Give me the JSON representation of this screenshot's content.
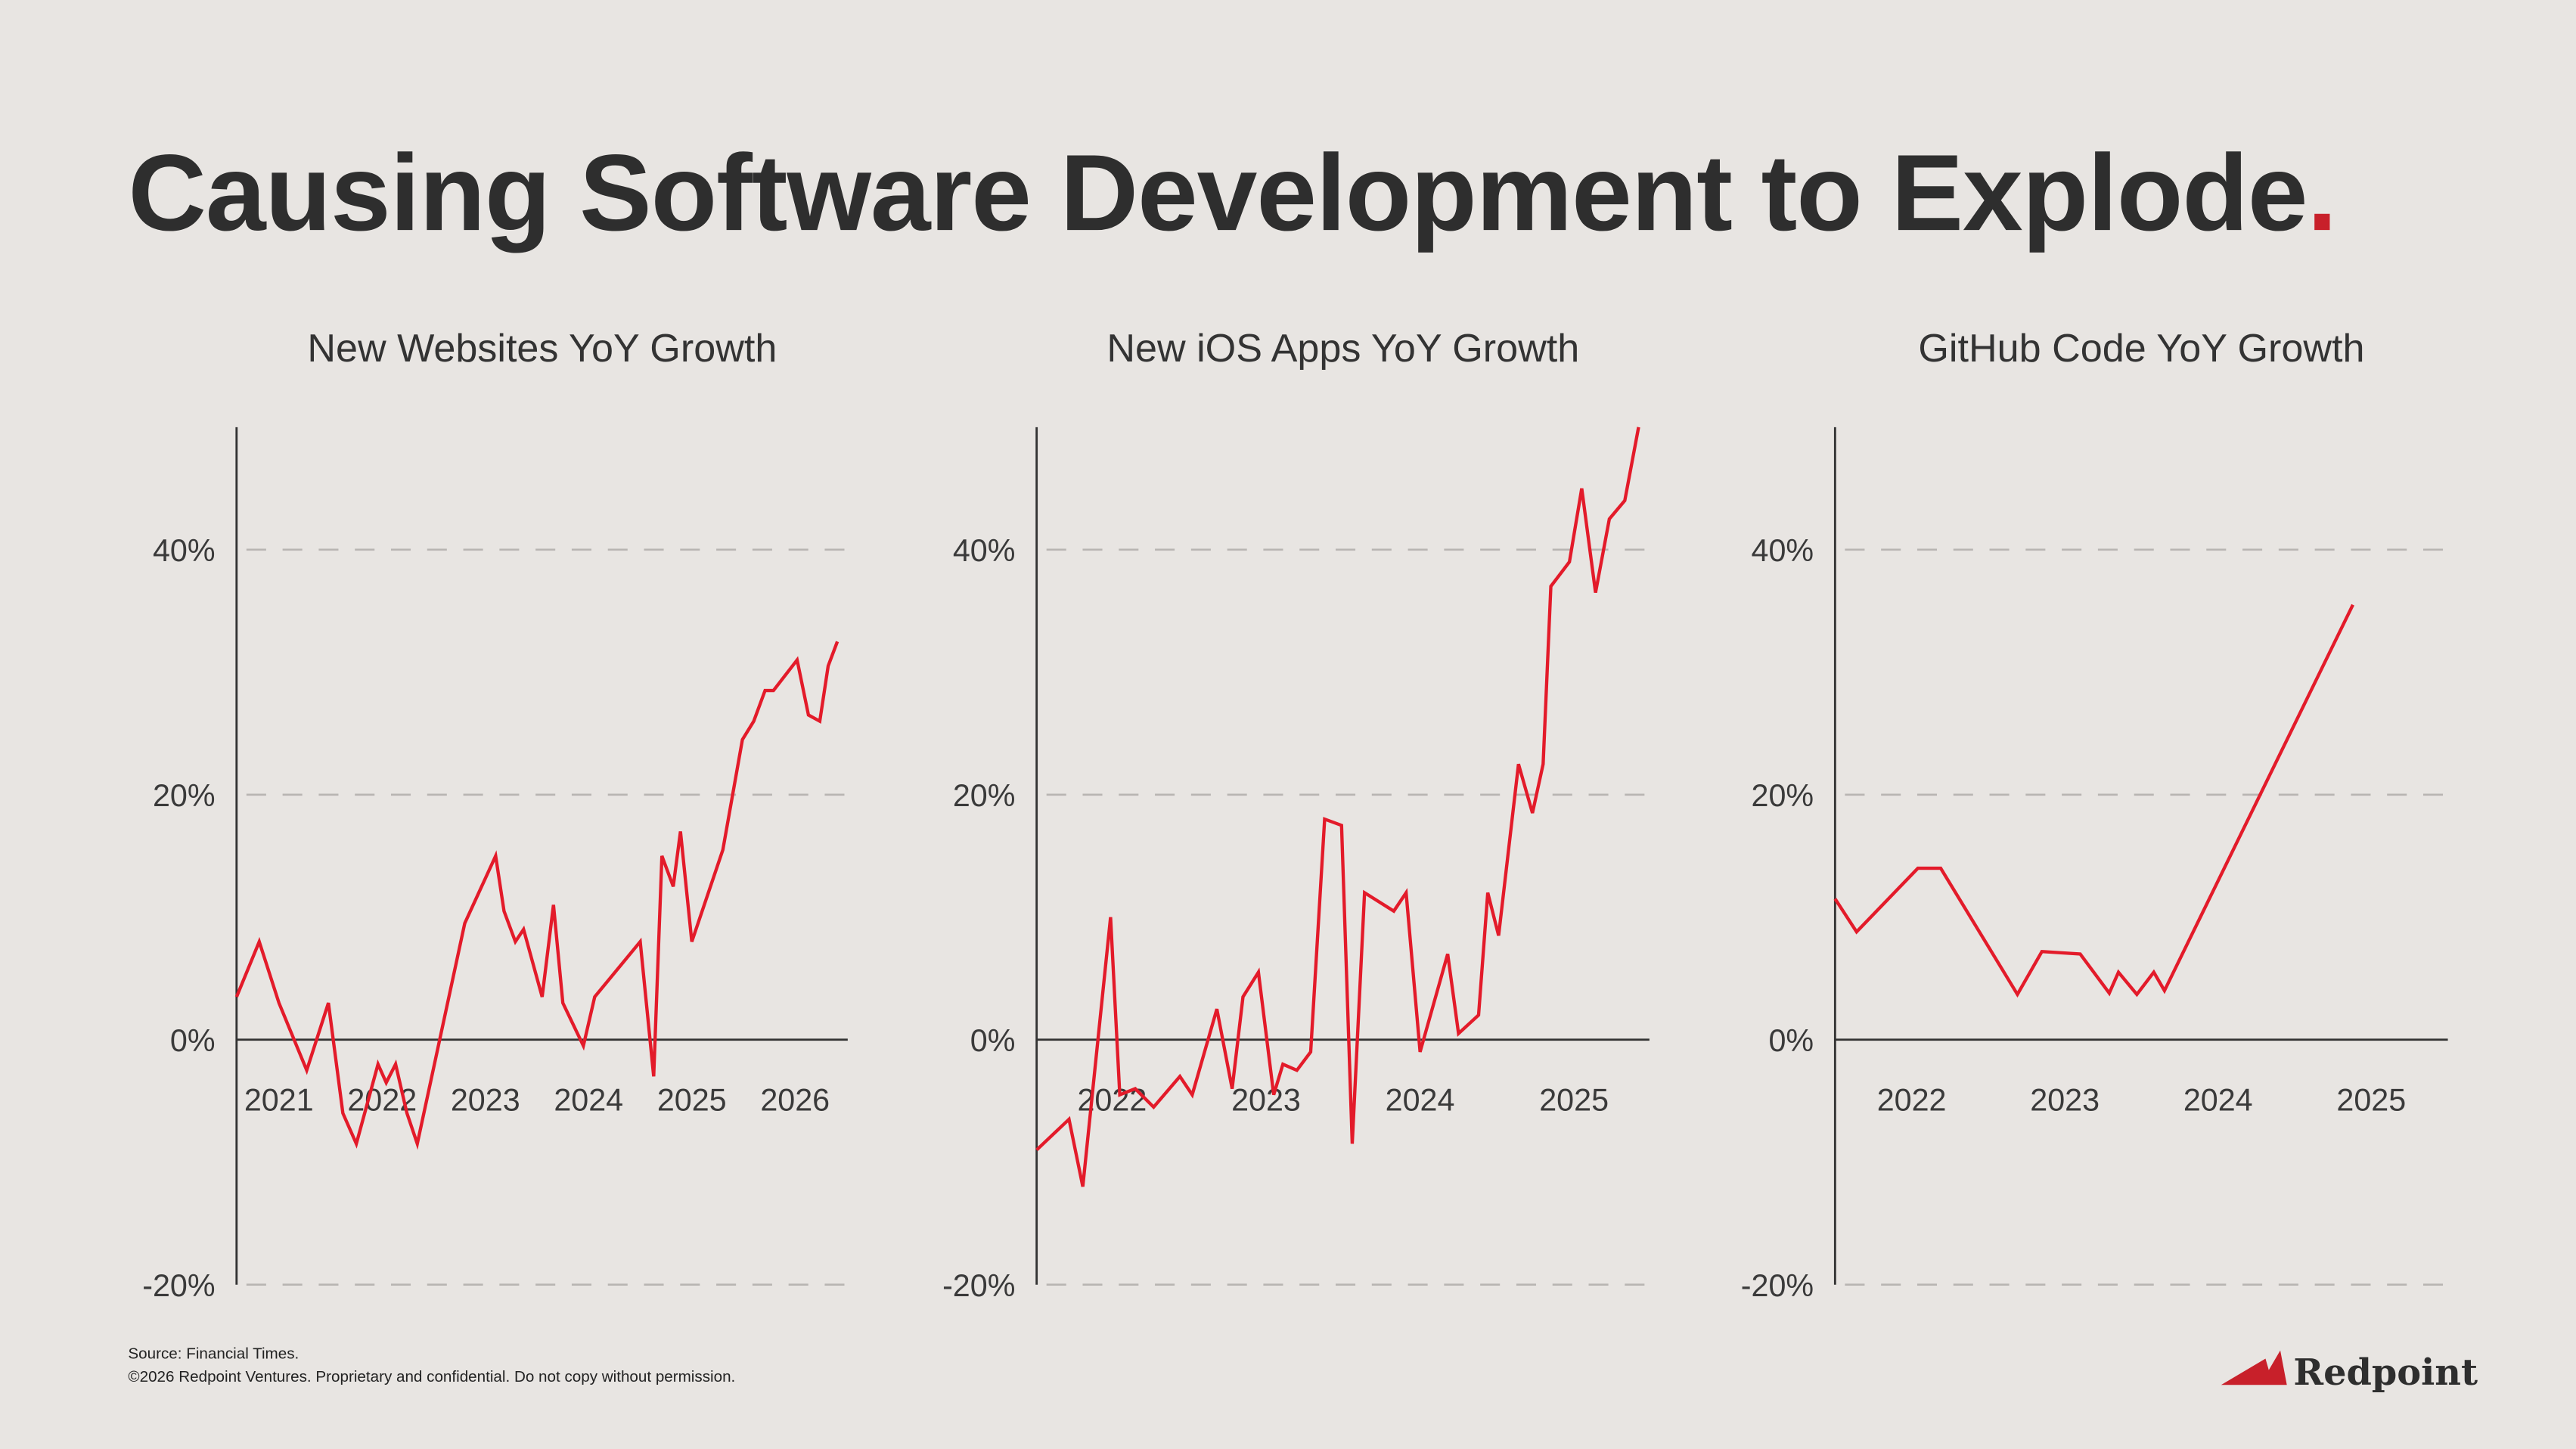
{
  "title": {
    "text": "Causing Software Development to Explode",
    "period": "."
  },
  "colors": {
    "line": "#e31b2a",
    "accent": "#c8202a",
    "text": "#2e2e2e",
    "grid": "#b8b5b2",
    "background": "#e8e5e2"
  },
  "chart_data": [
    {
      "type": "line",
      "title": "New Websites YoY Growth",
      "xlabel": "",
      "ylabel": "",
      "xlim": [
        2020.59,
        2026.51
      ],
      "ylim": [
        -20,
        50
      ],
      "grid": "dashed horizontal at 20% and 40%",
      "yticks": [
        {
          "v": 40,
          "label": "40%"
        },
        {
          "v": 20,
          "label": "20%"
        },
        {
          "v": 0,
          "label": "0%"
        },
        {
          "v": -20,
          "label": "-20%"
        }
      ],
      "xticks": [
        {
          "v": 2021,
          "label": "2021"
        },
        {
          "v": 2022,
          "label": "2022"
        },
        {
          "v": 2023,
          "label": "2023"
        },
        {
          "v": 2024,
          "label": "2024"
        },
        {
          "v": 2025,
          "label": "2025"
        },
        {
          "v": 2026,
          "label": "2026"
        }
      ],
      "series": [
        {
          "name": "New Websites YoY Growth",
          "x": [
            2020.59,
            2020.81,
            2021.0,
            2021.27,
            2021.48,
            2021.62,
            2021.75,
            2021.96,
            2022.04,
            2022.13,
            2022.24,
            2022.34,
            2022.8,
            2023.1,
            2023.18,
            2023.29,
            2023.37,
            2023.55,
            2023.66,
            2023.75,
            2023.95,
            2024.06,
            2024.5,
            2024.63,
            2024.71,
            2024.82,
            2024.89,
            2025.0,
            2025.3,
            2025.49,
            2025.6,
            2025.71,
            2025.79,
            2026.02,
            2026.13,
            2026.24,
            2026.32,
            2026.41
          ],
          "y": [
            3.5,
            8,
            3,
            -2.5,
            3,
            -6,
            -8.5,
            -2,
            -3.5,
            -2,
            -6,
            -8.5,
            9.5,
            15,
            10.5,
            8,
            9,
            3.5,
            11,
            3,
            -0.5,
            3.5,
            8,
            -3,
            15,
            12.5,
            17,
            8,
            15.5,
            24.5,
            26,
            28.5,
            28.5,
            31,
            26.5,
            26,
            30.5,
            32.5
          ]
        }
      ]
    },
    {
      "type": "line",
      "title": "New iOS Apps YoY Growth",
      "xlabel": "",
      "ylabel": "",
      "xlim": [
        2021.51,
        2025.49
      ],
      "ylim": [
        -20,
        50
      ],
      "grid": "dashed horizontal at 20% and 40%",
      "yticks": [
        {
          "v": 40,
          "label": "40%"
        },
        {
          "v": 20,
          "label": "20%"
        },
        {
          "v": 0,
          "label": "0%"
        },
        {
          "v": -20,
          "label": "-20%"
        }
      ],
      "xticks": [
        {
          "v": 2022,
          "label": "2022"
        },
        {
          "v": 2023,
          "label": "2023"
        },
        {
          "v": 2024,
          "label": "2024"
        },
        {
          "v": 2025,
          "label": "2025"
        }
      ],
      "series": [
        {
          "name": "New iOS Apps YoY Growth",
          "x": [
            2021.51,
            2021.72,
            2021.81,
            2021.99,
            2022.05,
            2022.15,
            2022.27,
            2022.44,
            2022.52,
            2022.68,
            2022.78,
            2022.85,
            2022.95,
            2023.05,
            2023.11,
            2023.2,
            2023.29,
            2023.38,
            2023.49,
            2023.56,
            2023.64,
            2023.83,
            2023.91,
            2024.0,
            2024.18,
            2024.25,
            2024.38,
            2024.44,
            2024.51,
            2024.64,
            2024.73,
            2024.8,
            2024.85,
            2024.97,
            2025.05,
            2025.14,
            2025.23,
            2025.33,
            2025.42
          ],
          "y": [
            -9,
            -6.5,
            -12,
            10,
            -4.5,
            -4,
            -5.5,
            -3,
            -4.5,
            2.5,
            -4,
            3.5,
            5.5,
            -4.5,
            -2,
            -2.5,
            -1,
            18,
            17.5,
            -8.5,
            12,
            10.5,
            12,
            -1,
            7,
            0.5,
            2,
            12,
            8.5,
            22.5,
            18.5,
            22.5,
            37,
            39,
            45,
            36.5,
            42.5,
            44,
            50
          ]
        }
      ]
    },
    {
      "type": "line",
      "title": "GitHub Code YoY Growth",
      "xlabel": "",
      "ylabel": "",
      "xlim": [
        2021.5,
        2025.5
      ],
      "ylim": [
        -20,
        50
      ],
      "grid": "dashed horizontal at 20% and 40%",
      "yticks": [
        {
          "v": 40,
          "label": "40%"
        },
        {
          "v": 20,
          "label": "20%"
        },
        {
          "v": 0,
          "label": "0%"
        },
        {
          "v": -20,
          "label": "-20%"
        }
      ],
      "xticks": [
        {
          "v": 2022,
          "label": "2022"
        },
        {
          "v": 2023,
          "label": "2023"
        },
        {
          "v": 2024,
          "label": "2024"
        },
        {
          "v": 2025,
          "label": "2025"
        }
      ],
      "series": [
        {
          "name": "GitHub Code YoY Growth",
          "x": [
            2021.5,
            2021.64,
            2022.04,
            2022.19,
            2022.69,
            2022.85,
            2023.1,
            2023.29,
            2023.35,
            2023.47,
            2023.58,
            2023.65,
            2024.88
          ],
          "y": [
            11.5,
            8.8,
            14,
            14,
            3.7,
            7.2,
            7,
            3.8,
            5.5,
            3.7,
            5.5,
            4,
            35.5
          ]
        }
      ]
    }
  ],
  "footer": {
    "source": "Source: Financial Times.",
    "copyright": "©2026 Redpoint Ventures. Proprietary and confidential. Do not copy without permission."
  },
  "logo": {
    "text": "Redpoint"
  }
}
